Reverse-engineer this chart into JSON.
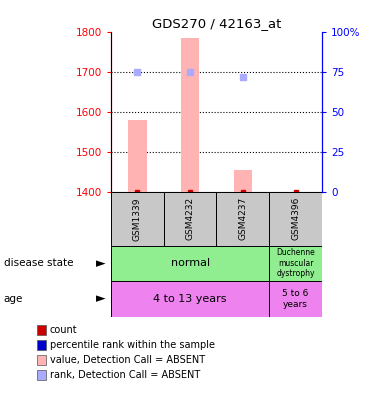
{
  "title": "GDS270 / 42163_at",
  "samples": [
    "GSM1339",
    "GSM4232",
    "GSM4237",
    "GSM4396"
  ],
  "bar_values": [
    1580,
    1785,
    1455,
    1400
  ],
  "bar_base": 1400,
  "rank_values": [
    75,
    75,
    72,
    null
  ],
  "ylim_left": [
    1400,
    1800
  ],
  "ylim_right": [
    0,
    100
  ],
  "yticks_left": [
    1400,
    1500,
    1600,
    1700,
    1800
  ],
  "yticks_right": [
    0,
    25,
    50,
    75,
    100
  ],
  "ytick_labels_right": [
    "0",
    "25",
    "50",
    "75",
    "100%"
  ],
  "bar_color": "#ffb3b3",
  "rank_color": "#aaaaff",
  "dot_color_red": "#cc0000",
  "dot_color_blue": "#0000cc",
  "normal_color": "#90ee90",
  "duchenne_color": "#90ee90",
  "age1_color": "#ee82ee",
  "age2_color": "#ee82ee",
  "sample_box_color": "#c8c8c8",
  "legend_items": [
    {
      "color": "#cc0000",
      "label": "count"
    },
    {
      "color": "#0000cc",
      "label": "percentile rank within the sample"
    },
    {
      "color": "#ffb3b3",
      "label": "value, Detection Call = ABSENT"
    },
    {
      "color": "#aaaaff",
      "label": "rank, Detection Call = ABSENT"
    }
  ]
}
